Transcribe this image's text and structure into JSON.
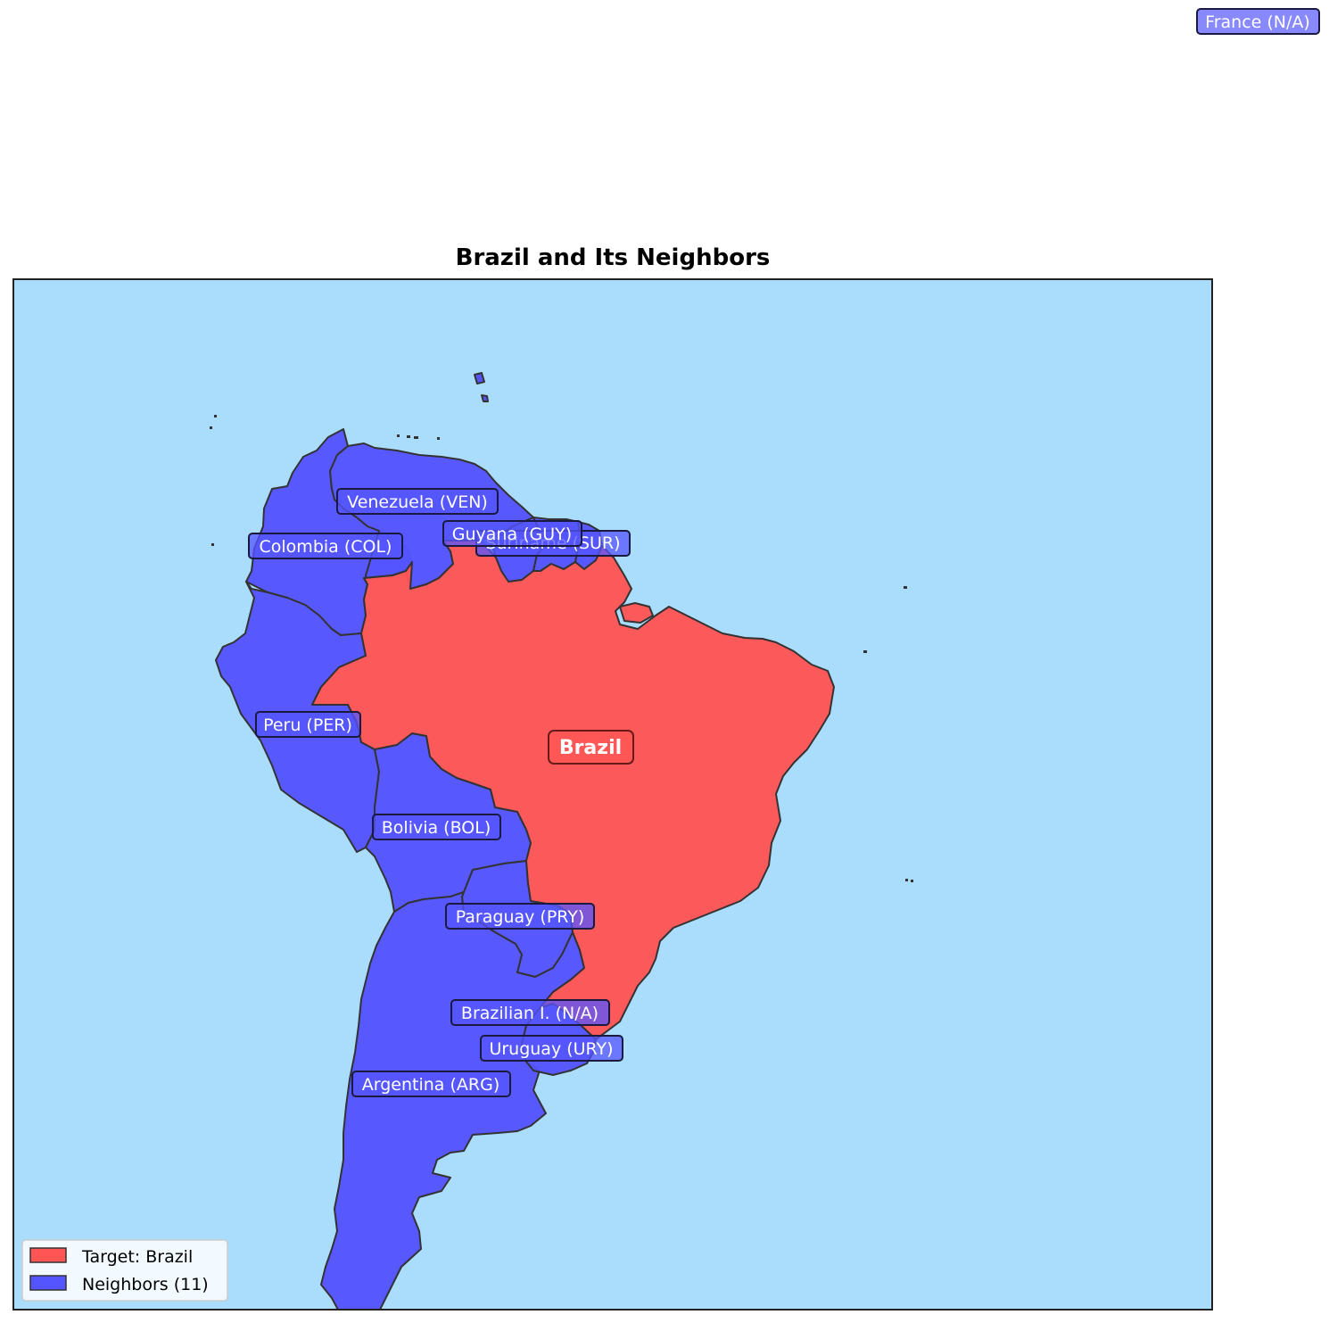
{
  "title": "Brazil and Its Neighbors",
  "colors": {
    "ocean": "#aadcfc",
    "target": "#ff5555",
    "neighbor": "#5555ff",
    "border": "#333333"
  },
  "target_label": "Brazil",
  "labels": {
    "france": "France (N/A)",
    "venezuela": "Venezuela (VEN)",
    "colombia": "Colombia (COL)",
    "suriname": "Suriname (SUR)",
    "guyana": "Guyana (GUY)",
    "peru": "Peru (PER)",
    "bolivia": "Bolivia (BOL)",
    "paraguay": "Paraguay (PRY)",
    "brazilian_island": "Brazilian I. (N/A)",
    "uruguay": "Uruguay (URY)",
    "argentina": "Argentina (ARG)"
  },
  "legend": {
    "target": "Target: Brazil",
    "neighbors": "Neighbors (11)"
  }
}
